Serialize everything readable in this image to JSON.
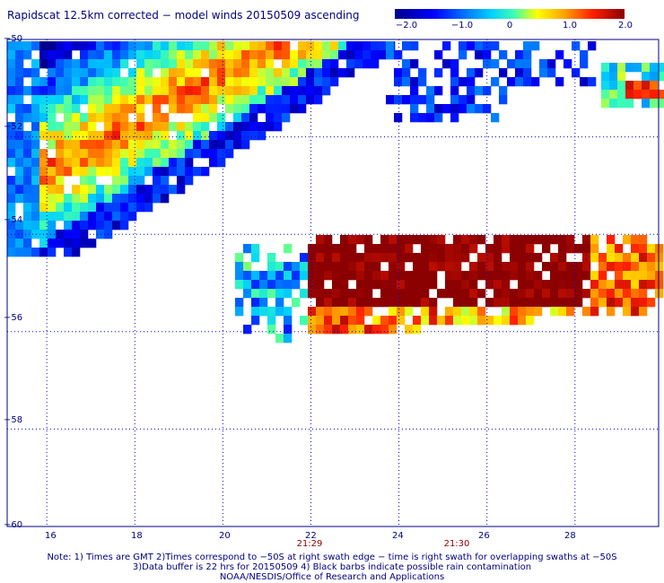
{
  "title": "Rapidscat 12.5km corrected − model winds 20150509 ascending",
  "colorbar": {
    "ticks": [
      "−2.0",
      "−1.0",
      "0",
      "1.0",
      "2.0"
    ],
    "colors": [
      "#00008b",
      "#0000ff",
      "#0070ff",
      "#00d0ff",
      "#40ffb0",
      "#ffff00",
      "#ffa000",
      "#ff2000",
      "#8b0000"
    ]
  },
  "map": {
    "lon_ticks": [
      "16",
      "18",
      "20",
      "22",
      "24",
      "26",
      "28"
    ],
    "lat_ticks": [
      "−50",
      "−52",
      "−54",
      "−56",
      "−58",
      "−60"
    ],
    "time_labels": [
      "21:29",
      "21:30"
    ],
    "grid_color": "#0000cd",
    "lon_range": [
      15.1,
      29.9
    ],
    "lat_range": [
      -60,
      -50
    ]
  },
  "swaths": [
    {
      "lon_range": [
        15.1,
        22.9
      ],
      "lat_range": [
        -54.6,
        -50.2
      ],
      "description_value_range": [
        -2.0,
        1.7
      ]
    },
    {
      "lon_range": [
        20.3,
        29.8
      ],
      "lat_range": [
        -56.4,
        -54.3
      ],
      "description_value_range": [
        -1.5,
        2.0
      ]
    },
    {
      "lon_range": [
        27.8,
        29.8
      ],
      "lat_range": [
        -51.5,
        -50.6
      ],
      "description_value_range": [
        -1.0,
        1.5
      ]
    }
  ],
  "notes": [
    "Note: 1) Times are GMT 2)Times correspond to −50S at right swath edge − time is right swath for overlapping swaths at −50S",
    "3)Data buffer is 22 hrs for 20150509 4) Black barbs indicate possible rain contamination",
    "NOAA/NESDIS/Office of Research and Applications"
  ]
}
